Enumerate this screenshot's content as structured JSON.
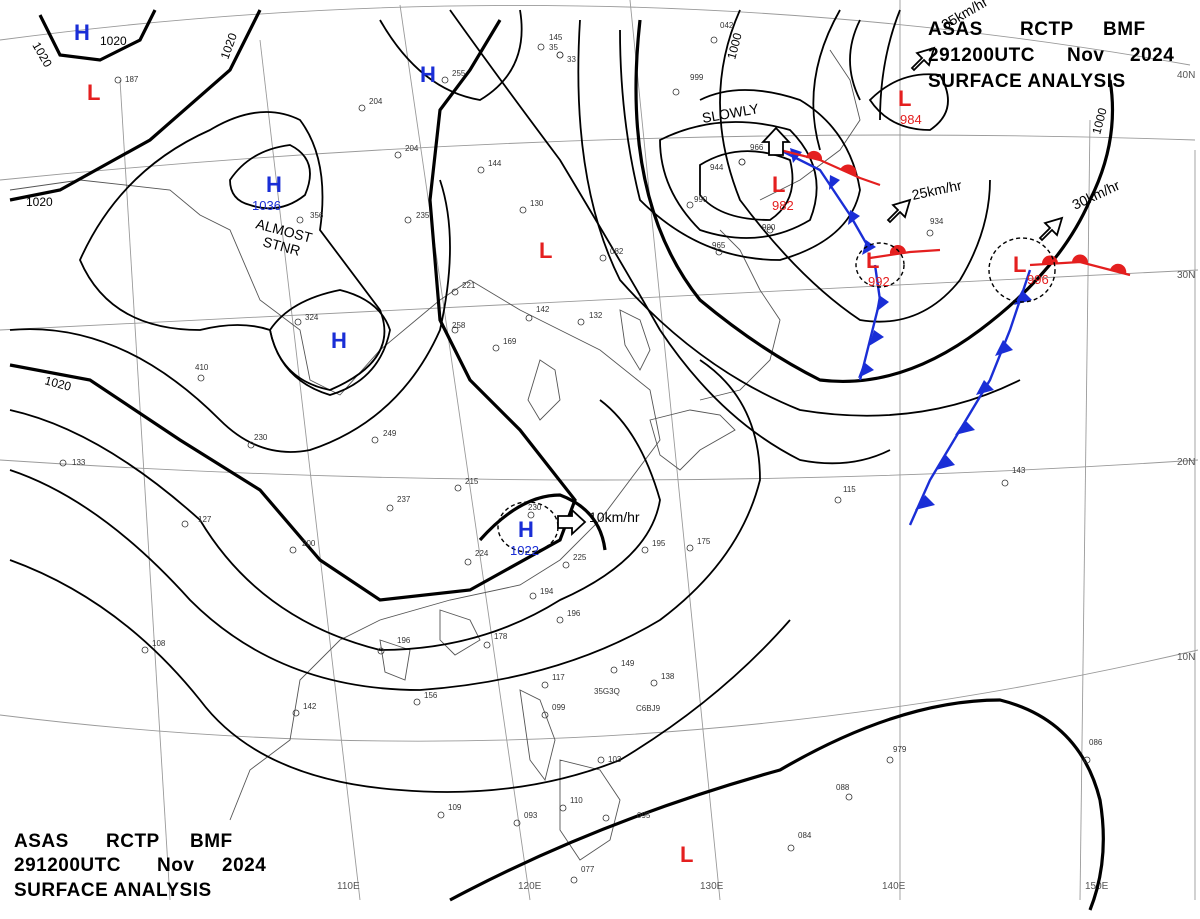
{
  "header_top": {
    "line1": [
      "ASAS",
      "RCTP",
      "BMF"
    ],
    "line2": [
      "291200UTC",
      "Nov",
      "2024"
    ],
    "line3": "SURFACE  ANALYSIS"
  },
  "header_bottom": {
    "line1": [
      "ASAS",
      "RCTP",
      "BMF"
    ],
    "line2": [
      "291200UTC",
      "Nov",
      "2024"
    ],
    "line3": "SURFACE  ANALYSIS"
  },
  "latitude_labels": [
    "40N",
    "30N",
    "20N",
    "10N"
  ],
  "longitude_labels": [
    "110E",
    "120E",
    "130E",
    "140E",
    "150E"
  ],
  "isobar_labels": [
    "1020",
    "1020",
    "1020",
    "1020",
    "1020",
    "1000",
    "1000"
  ],
  "pressure_centers": [
    {
      "type": "H",
      "value": ""
    },
    {
      "type": "H",
      "value": ""
    },
    {
      "type": "H",
      "value": "1036"
    },
    {
      "type": "H",
      "value": ""
    },
    {
      "type": "H",
      "value": "1022"
    },
    {
      "type": "L",
      "value": ""
    },
    {
      "type": "L",
      "value": ""
    },
    {
      "type": "L",
      "value": "982"
    },
    {
      "type": "L",
      "value": "984"
    },
    {
      "type": "L",
      "value": "992"
    },
    {
      "type": "L",
      "value": "996"
    },
    {
      "type": "L",
      "value": ""
    }
  ],
  "annotations": {
    "almost_stnr_1": "ALMOST",
    "almost_stnr_2": "STNR",
    "slowly": "SLOWLY",
    "motion_h": "10km/hr",
    "motion_l1": "25km/hr",
    "motion_l2": "30km/hr",
    "motion_top": "35km/hr"
  },
  "stations": [
    "145",
    "35",
    "255",
    "204",
    "204",
    "144",
    "356",
    "235",
    "130",
    "082",
    "142",
    "132",
    "324",
    "258",
    "169",
    "221",
    "410",
    "230",
    "249",
    "215",
    "237",
    "230",
    "224",
    "127",
    "133",
    "200",
    "195",
    "175",
    "225",
    "194",
    "196",
    "178",
    "196",
    "156",
    "142",
    "108",
    "149",
    "138",
    "117",
    "099",
    "103",
    "110",
    "109",
    "093",
    "095",
    "077",
    "084",
    "088",
    "979",
    "086",
    "143",
    "115",
    "934",
    "965",
    "900",
    "944",
    "999",
    "042",
    "966",
    "990",
    "187",
    "33",
    "35G3Q",
    "C6BJ9"
  ],
  "colors": {
    "high": "#1a2ed6",
    "low": "#e41f1f",
    "cold_front": "#1a2ed6",
    "warm_front": "#e41f1f",
    "isobar": "#000000",
    "graticule": "#9a9a9a"
  }
}
